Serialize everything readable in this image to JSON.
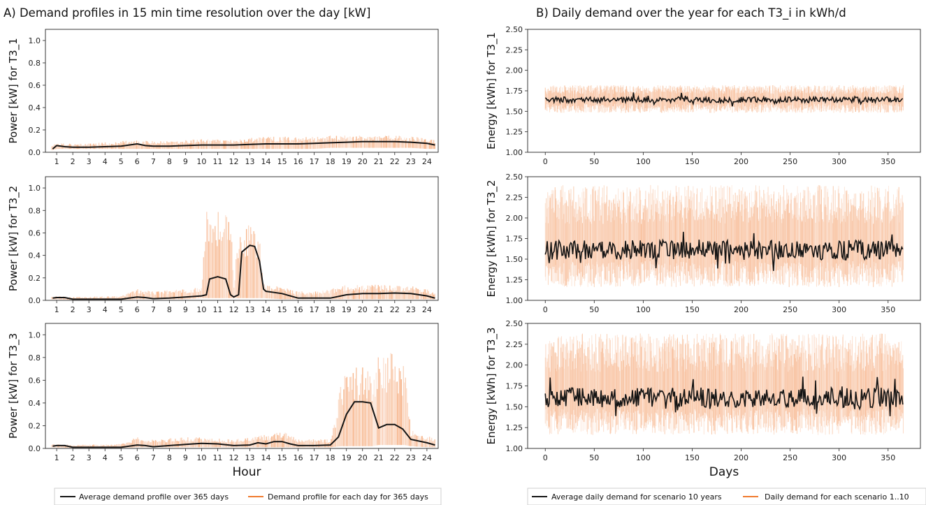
{
  "colors": {
    "average": "#141414",
    "profile": "#f07a2e",
    "profile_light": "#f5a06e"
  },
  "left": {
    "title": "A) Demand profiles in 15 min time resolution over the day [kW]",
    "xlabel": "Hour",
    "legend": {
      "average": "Average demand profile over 365 days",
      "each": "Demand profile for each day for 365 days"
    }
  },
  "right": {
    "title": "B) Daily demand over the year for each T3_i in kWh/d",
    "xlabel": "Days",
    "legend": {
      "average": "Average daily demand for scenario 10 years",
      "each": "Daily demand for each scenario 1..10"
    }
  },
  "chart_data": [
    {
      "type": "line",
      "id": "A1",
      "ylabel": "Power [kW] for T3_1",
      "xlim": [
        0.3,
        24.7
      ],
      "ylim": [
        0,
        1.1
      ],
      "xticks": [
        "1",
        "2",
        "3",
        "4",
        "5",
        "6",
        "7",
        "8",
        "9",
        "10",
        "11",
        "12",
        "13",
        "14",
        "15",
        "16",
        "17",
        "18",
        "19",
        "20",
        "21",
        "22",
        "23",
        "24"
      ],
      "yticks": [
        "0.0",
        "0.2",
        "0.4",
        "0.6",
        "0.8",
        "1.0"
      ],
      "average": [
        [
          0.75,
          0.03
        ],
        [
          1,
          0.06
        ],
        [
          1.5,
          0.05
        ],
        [
          2,
          0.045
        ],
        [
          3,
          0.045
        ],
        [
          4,
          0.05
        ],
        [
          5,
          0.055
        ],
        [
          5.5,
          0.065
        ],
        [
          6,
          0.075
        ],
        [
          6.5,
          0.06
        ],
        [
          7,
          0.055
        ],
        [
          8,
          0.055
        ],
        [
          9,
          0.06
        ],
        [
          10,
          0.065
        ],
        [
          11,
          0.065
        ],
        [
          12,
          0.065
        ],
        [
          13,
          0.07
        ],
        [
          14,
          0.075
        ],
        [
          15,
          0.075
        ],
        [
          16,
          0.075
        ],
        [
          17,
          0.08
        ],
        [
          18,
          0.085
        ],
        [
          19,
          0.09
        ],
        [
          20,
          0.095
        ],
        [
          21,
          0.095
        ],
        [
          22,
          0.095
        ],
        [
          23,
          0.09
        ],
        [
          24,
          0.08
        ],
        [
          24.5,
          0.065
        ]
      ],
      "band": [
        [
          0.75,
          0.02,
          0.07
        ],
        [
          1,
          0.03,
          0.09
        ],
        [
          2,
          0.03,
          0.08
        ],
        [
          3,
          0.03,
          0.08
        ],
        [
          4,
          0.03,
          0.09
        ],
        [
          5,
          0.03,
          0.1
        ],
        [
          6,
          0.03,
          0.11
        ],
        [
          7,
          0.03,
          0.1
        ],
        [
          8,
          0.03,
          0.1
        ],
        [
          9,
          0.03,
          0.11
        ],
        [
          10,
          0.03,
          0.12
        ],
        [
          11,
          0.03,
          0.12
        ],
        [
          12,
          0.03,
          0.12
        ],
        [
          13,
          0.03,
          0.13
        ],
        [
          14,
          0.03,
          0.14
        ],
        [
          15,
          0.03,
          0.14
        ],
        [
          16,
          0.03,
          0.14
        ],
        [
          17,
          0.03,
          0.14
        ],
        [
          18,
          0.04,
          0.15
        ],
        [
          19,
          0.04,
          0.15
        ],
        [
          20,
          0.04,
          0.15
        ],
        [
          21,
          0.04,
          0.15
        ],
        [
          22,
          0.04,
          0.15
        ],
        [
          23,
          0.04,
          0.14
        ],
        [
          24,
          0.03,
          0.13
        ],
        [
          24.5,
          0.03,
          0.11
        ]
      ]
    },
    {
      "type": "line",
      "id": "A2",
      "ylabel": "Power [kW] for T3_2",
      "xlim": [
        0.3,
        24.7
      ],
      "ylim": [
        0,
        1.1
      ],
      "xticks": [
        "1",
        "2",
        "3",
        "4",
        "5",
        "6",
        "7",
        "8",
        "9",
        "10",
        "11",
        "12",
        "13",
        "14",
        "15",
        "16",
        "17",
        "18",
        "19",
        "20",
        "21",
        "22",
        "23",
        "24"
      ],
      "yticks": [
        "0.0",
        "0.2",
        "0.4",
        "0.6",
        "0.8",
        "1.0"
      ],
      "average": [
        [
          0.75,
          0.02
        ],
        [
          1,
          0.025
        ],
        [
          1.5,
          0.025
        ],
        [
          2,
          0.01
        ],
        [
          3,
          0.01
        ],
        [
          4,
          0.01
        ],
        [
          5,
          0.01
        ],
        [
          5.5,
          0.02
        ],
        [
          6,
          0.03
        ],
        [
          6.5,
          0.025
        ],
        [
          7,
          0.015
        ],
        [
          8,
          0.02
        ],
        [
          9,
          0.03
        ],
        [
          10,
          0.04
        ],
        [
          10.3,
          0.05
        ],
        [
          10.5,
          0.19
        ],
        [
          11,
          0.21
        ],
        [
          11.5,
          0.19
        ],
        [
          11.8,
          0.05
        ],
        [
          12,
          0.03
        ],
        [
          12.3,
          0.05
        ],
        [
          12.5,
          0.43
        ],
        [
          13,
          0.49
        ],
        [
          13.3,
          0.48
        ],
        [
          13.6,
          0.35
        ],
        [
          13.85,
          0.1
        ],
        [
          14,
          0.08
        ],
        [
          15,
          0.06
        ],
        [
          15.5,
          0.04
        ],
        [
          16,
          0.02
        ],
        [
          17,
          0.02
        ],
        [
          18,
          0.02
        ],
        [
          19,
          0.05
        ],
        [
          20,
          0.06
        ],
        [
          21,
          0.06
        ],
        [
          22,
          0.065
        ],
        [
          23,
          0.06
        ],
        [
          24,
          0.04
        ],
        [
          24.5,
          0.02
        ]
      ],
      "band": [
        [
          0.75,
          0.01,
          0.04
        ],
        [
          2,
          0.005,
          0.03
        ],
        [
          5,
          0.005,
          0.04
        ],
        [
          6,
          0.01,
          0.1
        ],
        [
          7,
          0.01,
          0.08
        ],
        [
          8,
          0.01,
          0.09
        ],
        [
          9,
          0.01,
          0.1
        ],
        [
          10,
          0.02,
          0.12
        ],
        [
          10.3,
          0.02,
          0.8
        ],
        [
          11,
          0.02,
          0.82
        ],
        [
          11.8,
          0.02,
          0.8
        ],
        [
          12,
          0.02,
          0.12
        ],
        [
          12.3,
          0.02,
          0.68
        ],
        [
          13,
          0.02,
          0.68
        ],
        [
          13.6,
          0.02,
          0.66
        ],
        [
          13.9,
          0.02,
          0.14
        ],
        [
          15,
          0.01,
          0.12
        ],
        [
          16,
          0.01,
          0.08
        ],
        [
          17,
          0.01,
          0.08
        ],
        [
          18,
          0.01,
          0.1
        ],
        [
          19,
          0.01,
          0.14
        ],
        [
          20,
          0.01,
          0.14
        ],
        [
          21,
          0.01,
          0.14
        ],
        [
          22,
          0.01,
          0.14
        ],
        [
          23,
          0.01,
          0.13
        ],
        [
          24,
          0.01,
          0.1
        ],
        [
          24.5,
          0.01,
          0.07
        ]
      ]
    },
    {
      "type": "line",
      "id": "A3",
      "ylabel": "Power [kW] for T3_3",
      "xlim": [
        0.3,
        24.7
      ],
      "ylim": [
        0,
        1.1
      ],
      "xticks": [
        "1",
        "2",
        "3",
        "4",
        "5",
        "6",
        "7",
        "8",
        "9",
        "10",
        "11",
        "12",
        "13",
        "14",
        "15",
        "16",
        "17",
        "18",
        "19",
        "20",
        "21",
        "22",
        "23",
        "24"
      ],
      "yticks": [
        "0.0",
        "0.2",
        "0.4",
        "0.6",
        "0.8",
        "1.0"
      ],
      "average": [
        [
          0.75,
          0.02
        ],
        [
          1,
          0.025
        ],
        [
          1.5,
          0.025
        ],
        [
          2,
          0.01
        ],
        [
          3,
          0.01
        ],
        [
          4,
          0.01
        ],
        [
          5,
          0.01
        ],
        [
          5.5,
          0.02
        ],
        [
          6,
          0.03
        ],
        [
          6.5,
          0.025
        ],
        [
          7,
          0.015
        ],
        [
          8,
          0.025
        ],
        [
          9,
          0.035
        ],
        [
          10,
          0.045
        ],
        [
          11,
          0.04
        ],
        [
          12,
          0.025
        ],
        [
          13,
          0.03
        ],
        [
          13.5,
          0.05
        ],
        [
          14,
          0.04
        ],
        [
          14.5,
          0.06
        ],
        [
          15,
          0.06
        ],
        [
          15.5,
          0.04
        ],
        [
          16,
          0.025
        ],
        [
          17,
          0.025
        ],
        [
          18,
          0.03
        ],
        [
          18.5,
          0.1
        ],
        [
          19,
          0.3
        ],
        [
          19.5,
          0.41
        ],
        [
          20,
          0.41
        ],
        [
          20.5,
          0.4
        ],
        [
          21,
          0.18
        ],
        [
          21.5,
          0.21
        ],
        [
          22,
          0.21
        ],
        [
          22.5,
          0.17
        ],
        [
          23,
          0.08
        ],
        [
          24,
          0.05
        ],
        [
          24.5,
          0.03
        ]
      ],
      "band": [
        [
          0.75,
          0.01,
          0.04
        ],
        [
          2,
          0.005,
          0.03
        ],
        [
          5,
          0.005,
          0.04
        ],
        [
          6,
          0.01,
          0.1
        ],
        [
          7,
          0.01,
          0.08
        ],
        [
          9,
          0.01,
          0.1
        ],
        [
          10,
          0.01,
          0.1
        ],
        [
          12,
          0.01,
          0.08
        ],
        [
          13,
          0.01,
          0.1
        ],
        [
          14,
          0.01,
          0.12
        ],
        [
          15,
          0.01,
          0.16
        ],
        [
          16,
          0.01,
          0.08
        ],
        [
          18,
          0.01,
          0.08
        ],
        [
          18.7,
          0.02,
          0.6
        ],
        [
          19,
          0.02,
          0.7
        ],
        [
          20,
          0.02,
          0.72
        ],
        [
          20.6,
          0.02,
          0.65
        ],
        [
          21,
          0.03,
          0.86
        ],
        [
          22,
          0.03,
          0.86
        ],
        [
          22.6,
          0.03,
          0.8
        ],
        [
          23,
          0.02,
          0.16
        ],
        [
          24,
          0.01,
          0.12
        ],
        [
          24.5,
          0.01,
          0.08
        ]
      ]
    },
    {
      "type": "line",
      "id": "B1",
      "ylabel": "Energy [kWh] for T3_1",
      "xlim": [
        -18,
        383
      ],
      "ylim": [
        1.0,
        2.5
      ],
      "xticks": [
        "0",
        "50",
        "100",
        "150",
        "200",
        "250",
        "300",
        "350"
      ],
      "yticks": [
        "1.00",
        "1.25",
        "1.50",
        "1.75",
        "2.00",
        "2.25",
        "2.50"
      ],
      "mean": 1.64,
      "amp": 0.035,
      "band": [
        1.48,
        1.82
      ]
    },
    {
      "type": "line",
      "id": "B2",
      "ylabel": "Energy [kWh] for T3_2",
      "xlim": [
        -18,
        383
      ],
      "ylim": [
        1.0,
        2.5
      ],
      "xticks": [
        "0",
        "50",
        "100",
        "150",
        "200",
        "250",
        "300",
        "350"
      ],
      "yticks": [
        "1.00",
        "1.25",
        "1.50",
        "1.75",
        "2.00",
        "2.25",
        "2.50"
      ],
      "mean": 1.61,
      "amp": 0.12,
      "band": [
        1.16,
        2.4
      ]
    },
    {
      "type": "line",
      "id": "B3",
      "ylabel": "Energy [kWh] for T3_3",
      "xlim": [
        -18,
        383
      ],
      "ylim": [
        1.0,
        2.5
      ],
      "xticks": [
        "0",
        "50",
        "100",
        "150",
        "200",
        "250",
        "300",
        "350"
      ],
      "yticks": [
        "1.00",
        "1.25",
        "1.50",
        "1.75",
        "2.00",
        "2.25",
        "2.50"
      ],
      "mean": 1.61,
      "amp": 0.12,
      "band": [
        1.16,
        2.38
      ]
    }
  ]
}
